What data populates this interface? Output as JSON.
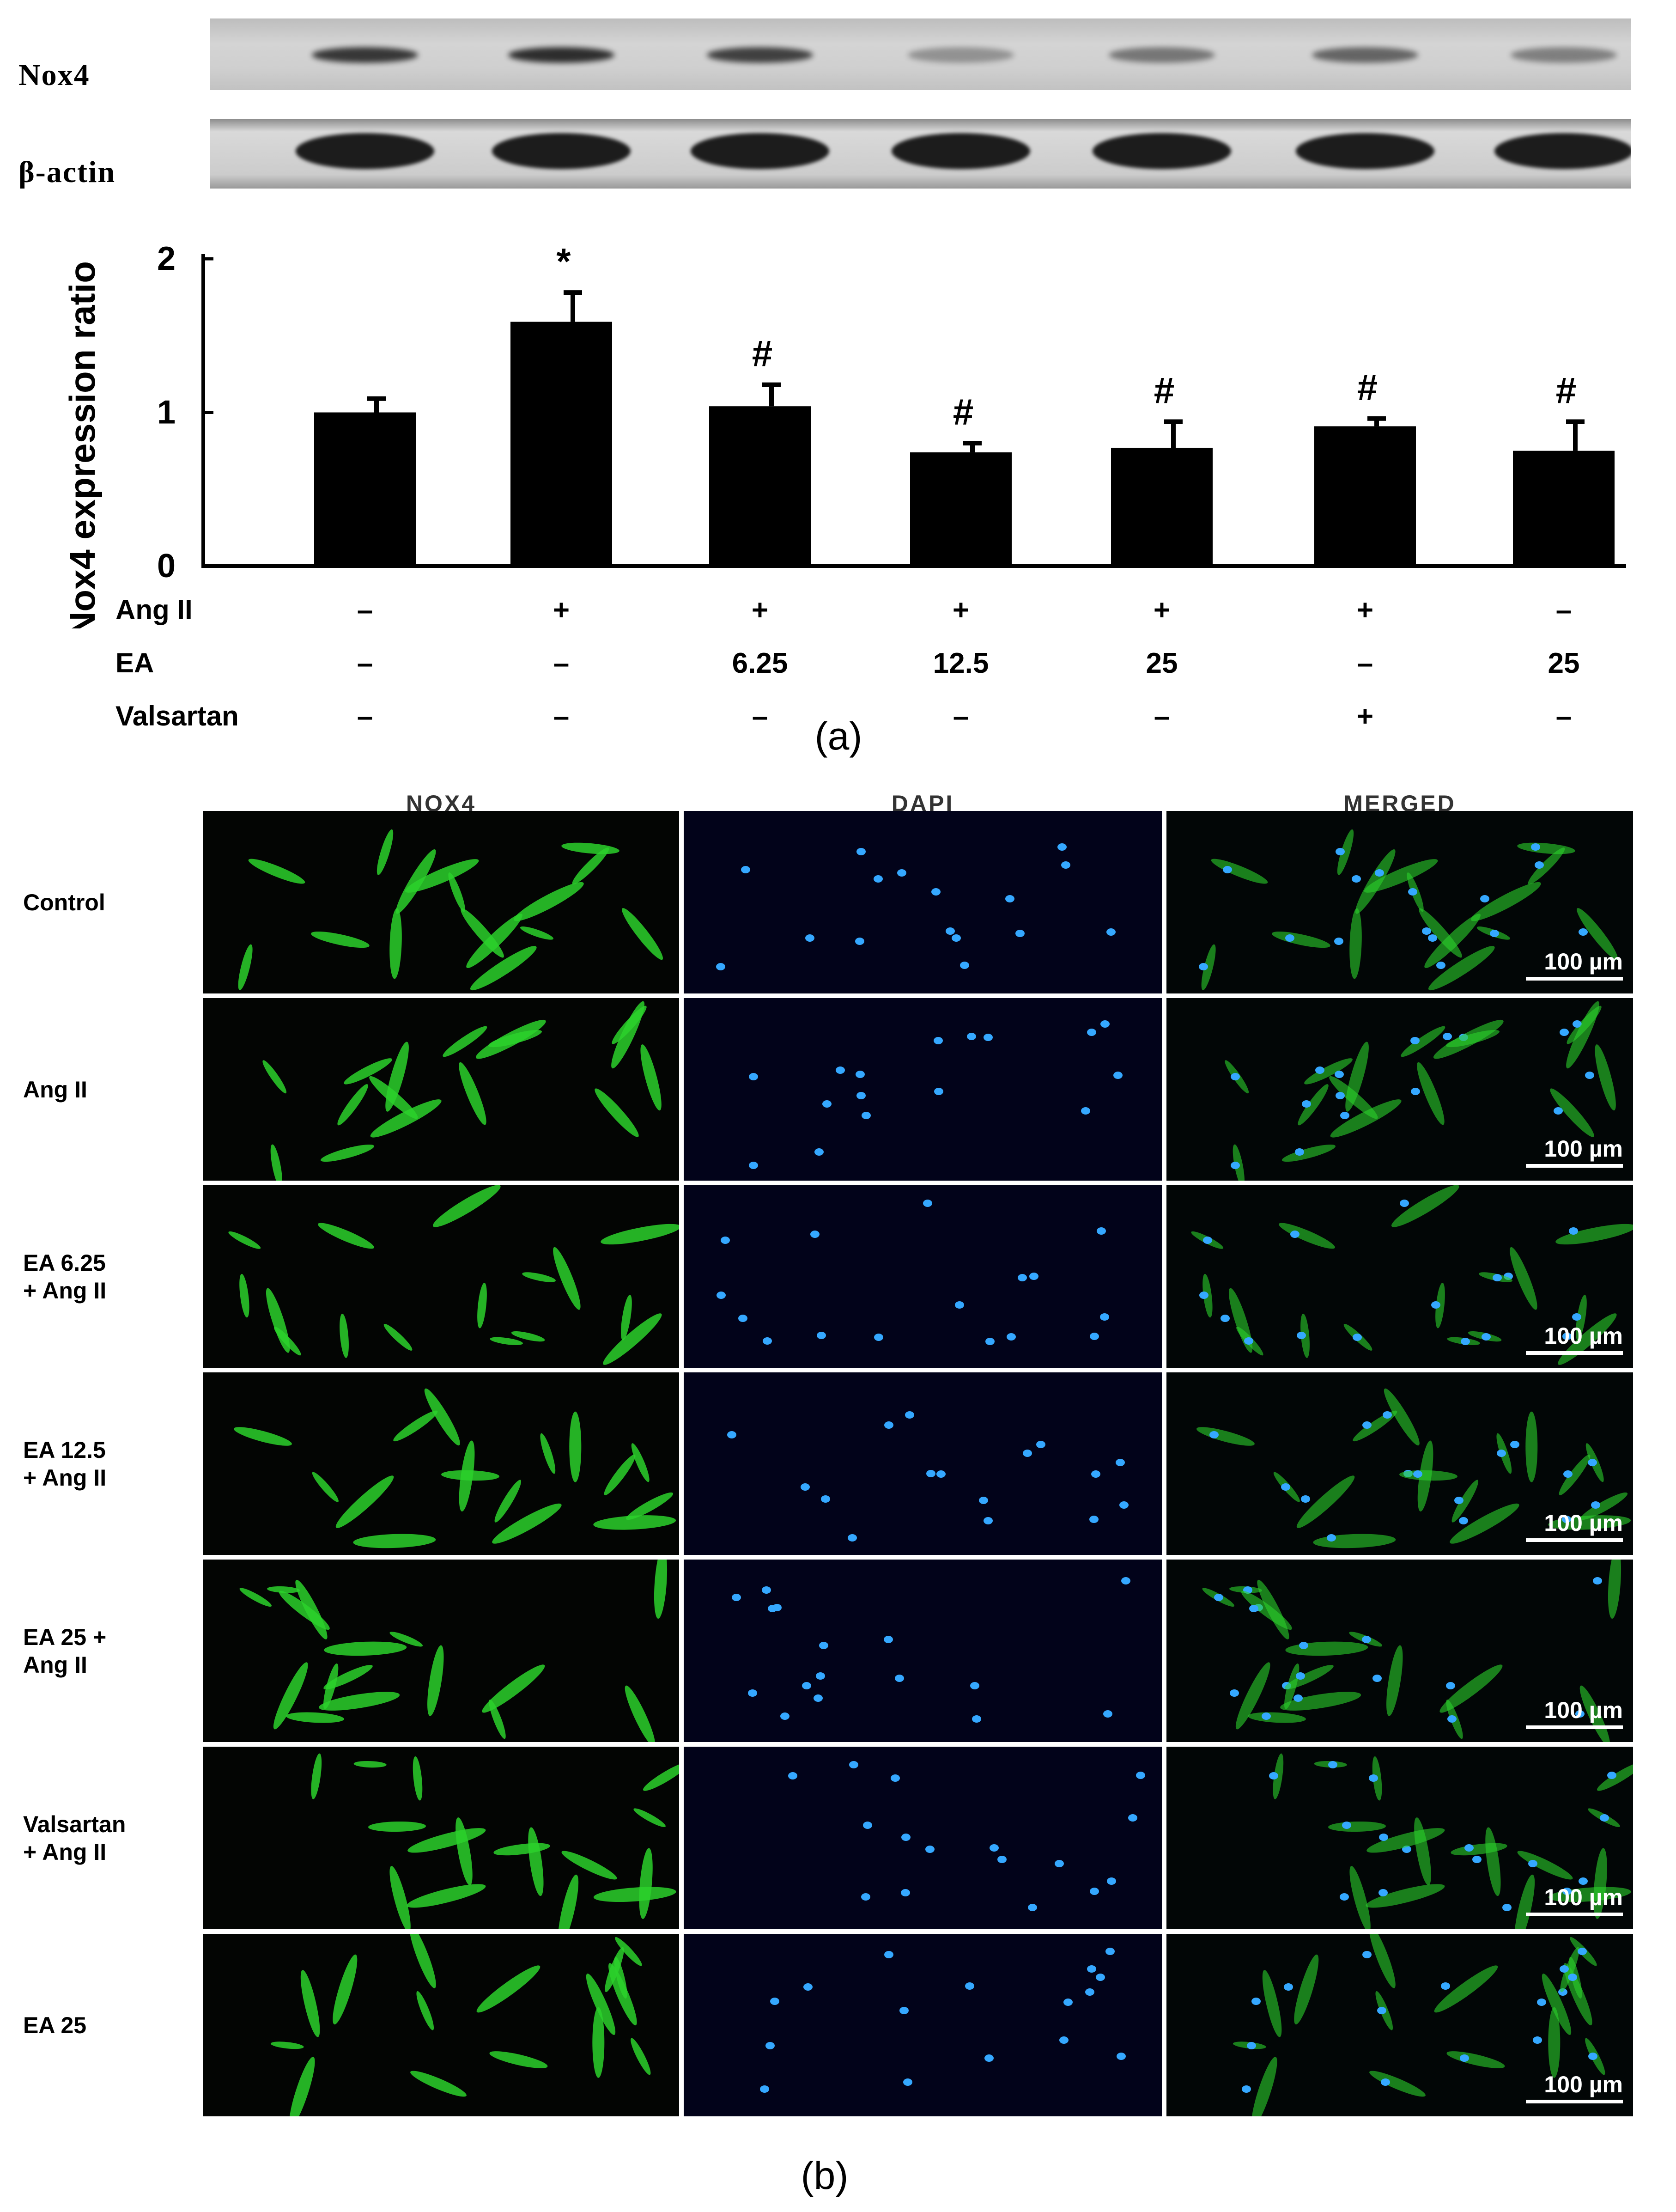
{
  "blot": {
    "nox4_label": "Nox4",
    "actin_label": "β-actin"
  },
  "chart_data": {
    "type": "bar",
    "ylabel": "Nox4 expression ratio",
    "ylim": [
      0,
      2
    ],
    "yticks": [
      "0",
      "1",
      "2"
    ],
    "values": [
      1.0,
      1.59,
      1.04,
      0.74,
      0.77,
      0.91,
      0.75
    ],
    "errors": [
      0.09,
      0.19,
      0.14,
      0.06,
      0.17,
      0.05,
      0.19
    ],
    "significance": [
      "",
      "*",
      "#",
      "#",
      "#",
      "#",
      "#"
    ],
    "treatments": {
      "Ang II": [
        "–",
        "+",
        "+",
        "+",
        "+",
        "+",
        "–"
      ],
      "EA": [
        "–",
        "–",
        "6.25",
        "12.5",
        "25",
        "–",
        "25"
      ],
      "Valsartan": [
        "–",
        "–",
        "–",
        "–",
        "–",
        "+",
        "–"
      ]
    },
    "bar_color": "#000000"
  },
  "treatment_labels": [
    "Ang II",
    "EA",
    "Valsartan"
  ],
  "caption_a": "(a)",
  "caption_b": "(b)",
  "micrographs": {
    "columns": [
      "NOX4",
      "DAPI",
      "MERGED"
    ],
    "rows": [
      [
        "Control"
      ],
      [
        "Ang II"
      ],
      [
        "EA 6.25",
        "+ Ang II"
      ],
      [
        "EA 12.5",
        "+ Ang II"
      ],
      [
        "EA 25 +",
        "Ang II"
      ],
      [
        "Valsartan",
        "+ Ang II"
      ],
      [
        "EA 25"
      ]
    ],
    "scale_bar": "100 µm",
    "nox4_color": "#2bd12b",
    "dapi_color": "#35a8ff"
  }
}
